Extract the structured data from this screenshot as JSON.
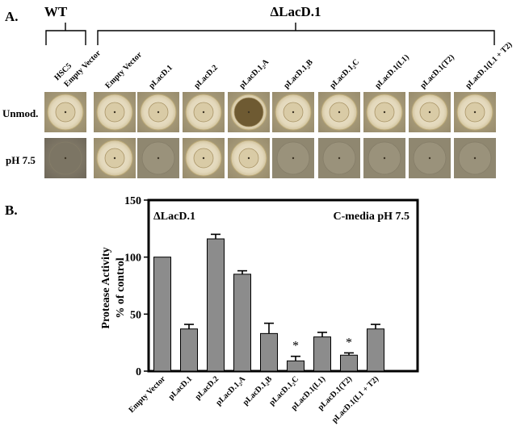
{
  "panel_a": {
    "label": "A.",
    "wt_label": "WT",
    "mutant_label": "ΔLacD.1",
    "strains": [
      {
        "label": "HSC5 Empty Vector",
        "line1": "HSC5",
        "line2": "Empty Vector",
        "group": "WT"
      },
      {
        "label": "Empty Vector",
        "group": "ΔLacD.1"
      },
      {
        "label": "pLacD.1",
        "group": "ΔLacD.1"
      },
      {
        "label": "pLacD.2",
        "group": "ΔLacD.1"
      },
      {
        "label": "pLacD.1₂A",
        "group": "ΔLacD.1"
      },
      {
        "label": "pLacD.1₂B",
        "group": "ΔLacD.1"
      },
      {
        "label": "pLacD.1₂C",
        "group": "ΔLacD.1"
      },
      {
        "label": "pLacD.1(L1)",
        "group": "ΔLacD.1"
      },
      {
        "label": "pLacD.1(T2)",
        "group": "ΔLacD.1"
      },
      {
        "label": "pLacD.1(L1 + T2)",
        "group": "ΔLacD.1"
      }
    ],
    "rows": [
      {
        "label": "Unmod.",
        "halo": [
          true,
          true,
          true,
          true,
          true,
          true,
          true,
          true,
          true,
          true
        ]
      },
      {
        "label": "pH 7.5",
        "halo": [
          false,
          true,
          false,
          true,
          true,
          false,
          false,
          false,
          false,
          false
        ]
      }
    ],
    "colors": {
      "plate": "#c9bc9a",
      "plate_dark": "#7d7563",
      "halo": "#e7ddc4",
      "colony": "#b09a6a"
    }
  },
  "panel_b": {
    "label": "B."
  },
  "chart_data": {
    "type": "bar",
    "title": "",
    "inset_left": "ΔLacD.1",
    "inset_right": "C-media pH 7.5",
    "ylabel_line1": "Protease Activity",
    "ylabel_line2": "% of control",
    "xlabel": "",
    "ylim": [
      0,
      150
    ],
    "yticks": [
      0,
      50,
      100,
      150
    ],
    "categories": [
      "Empty Vector",
      "pLacD.1",
      "pLacD.2",
      "pLacD.1₂A",
      "pLacD.1₂B",
      "pLacD.1₂C",
      "pLacD.1(L1)",
      "pLacD.1(T2)",
      "pLacD.1(L1 + T2)"
    ],
    "values": [
      100,
      37,
      116,
      85,
      33,
      9,
      30,
      14,
      37
    ],
    "errors": [
      0,
      4,
      4,
      3,
      9,
      4,
      4,
      2,
      4
    ],
    "significant": [
      false,
      false,
      false,
      false,
      false,
      true,
      false,
      true,
      false
    ],
    "significance_marker": "*",
    "bar_color": "#8c8c8c",
    "grid": false
  }
}
